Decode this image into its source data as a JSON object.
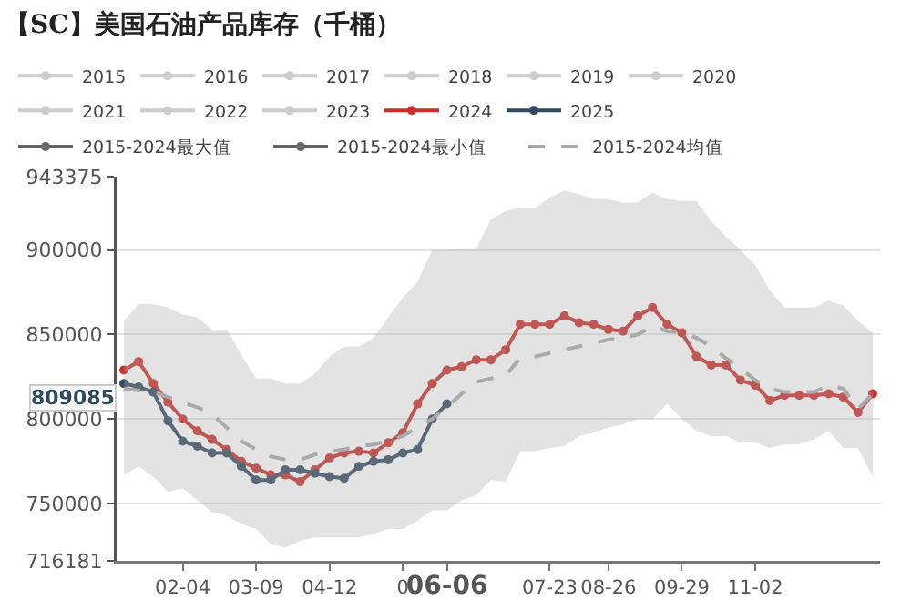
{
  "chart_data": {
    "type": "line",
    "title": "【SC】美国石油产品库存（千桶）",
    "categories": [
      null,
      null,
      null,
      null,
      "02-04",
      null,
      null,
      null,
      null,
      "03-09",
      null,
      null,
      null,
      null,
      "04-12",
      null,
      null,
      null,
      null,
      "0",
      null,
      null,
      "06-06",
      null,
      null,
      null,
      null,
      null,
      null,
      "07-23",
      null,
      null,
      null,
      "08-26",
      null,
      null,
      null,
      null,
      "09-29",
      null,
      null,
      null,
      null,
      "11-02",
      null,
      null,
      null,
      null,
      null,
      null,
      null,
      null
    ],
    "series": [
      {
        "name": "2015",
        "color": "#cccccc",
        "values": [
          null,
          null,
          null,
          null,
          null,
          null,
          null,
          null,
          null,
          null,
          null,
          null,
          null,
          null,
          null,
          null,
          null,
          null,
          null,
          null,
          null,
          null,
          null,
          null,
          null,
          null,
          null,
          null,
          null,
          null,
          null,
          null,
          null,
          null,
          null,
          null,
          null,
          null,
          null,
          null,
          null,
          null,
          null,
          null,
          null,
          null,
          null,
          null,
          null,
          null,
          null,
          null
        ]
      },
      {
        "name": "2016",
        "color": "#cccccc",
        "values": [
          null,
          null,
          null,
          null,
          null,
          null,
          null,
          null,
          null,
          null,
          null,
          null,
          null,
          null,
          null,
          null,
          null,
          null,
          null,
          null,
          null,
          null,
          null,
          null,
          null,
          null,
          null,
          null,
          null,
          null,
          null,
          null,
          null,
          null,
          null,
          null,
          null,
          null,
          null,
          null,
          null,
          null,
          null,
          null,
          null,
          null,
          null,
          null,
          null,
          null,
          null,
          null
        ]
      },
      {
        "name": "2017",
        "color": "#cccccc",
        "values": [
          null,
          null,
          null,
          null,
          null,
          null,
          null,
          null,
          null,
          null,
          null,
          null,
          null,
          null,
          null,
          null,
          null,
          null,
          null,
          null,
          null,
          null,
          null,
          null,
          null,
          null,
          null,
          null,
          null,
          null,
          null,
          null,
          null,
          null,
          null,
          null,
          null,
          null,
          null,
          null,
          null,
          null,
          null,
          null,
          null,
          null,
          null,
          null,
          null,
          null,
          null,
          null
        ]
      },
      {
        "name": "2018",
        "color": "#cccccc",
        "values": [
          null,
          null,
          null,
          null,
          null,
          null,
          null,
          null,
          null,
          null,
          null,
          null,
          null,
          null,
          null,
          null,
          null,
          null,
          null,
          null,
          null,
          null,
          null,
          null,
          null,
          null,
          null,
          null,
          null,
          null,
          null,
          null,
          null,
          null,
          null,
          null,
          null,
          null,
          null,
          null,
          null,
          null,
          null,
          null,
          null,
          null,
          null,
          null,
          null,
          null,
          null,
          null
        ]
      },
      {
        "name": "2019",
        "color": "#cccccc",
        "values": [
          null,
          null,
          null,
          null,
          null,
          null,
          null,
          null,
          null,
          null,
          null,
          null,
          null,
          null,
          null,
          null,
          null,
          null,
          null,
          null,
          null,
          null,
          null,
          null,
          null,
          null,
          null,
          null,
          null,
          null,
          null,
          null,
          null,
          null,
          null,
          null,
          null,
          null,
          null,
          null,
          null,
          null,
          null,
          null,
          null,
          null,
          null,
          null,
          null,
          null,
          null,
          null
        ]
      },
      {
        "name": "2020",
        "color": "#cccccc",
        "values": [
          null,
          null,
          null,
          null,
          null,
          null,
          null,
          null,
          null,
          null,
          null,
          null,
          null,
          null,
          null,
          null,
          null,
          null,
          null,
          null,
          null,
          null,
          null,
          null,
          null,
          null,
          null,
          null,
          null,
          null,
          null,
          null,
          null,
          null,
          null,
          null,
          null,
          null,
          null,
          null,
          null,
          null,
          null,
          null,
          null,
          null,
          null,
          null,
          null,
          null,
          null,
          null
        ]
      },
      {
        "name": "2021",
        "color": "#cccccc",
        "values": [
          null,
          null,
          null,
          null,
          null,
          null,
          null,
          null,
          null,
          null,
          null,
          null,
          null,
          null,
          null,
          null,
          null,
          null,
          null,
          null,
          null,
          null,
          null,
          null,
          null,
          null,
          null,
          null,
          null,
          null,
          null,
          null,
          null,
          null,
          null,
          null,
          null,
          null,
          null,
          null,
          null,
          null,
          null,
          null,
          null,
          null,
          null,
          null,
          null,
          null,
          null,
          null
        ]
      },
      {
        "name": "2022",
        "color": "#cccccc",
        "values": [
          null,
          null,
          null,
          null,
          null,
          null,
          null,
          null,
          null,
          null,
          null,
          null,
          null,
          null,
          null,
          null,
          null,
          null,
          null,
          null,
          null,
          null,
          null,
          null,
          null,
          null,
          null,
          null,
          null,
          null,
          null,
          null,
          null,
          null,
          null,
          null,
          null,
          null,
          null,
          null,
          null,
          null,
          null,
          null,
          null,
          null,
          null,
          null,
          null,
          null,
          null,
          null
        ]
      },
      {
        "name": "2023",
        "color": "#cccccc",
        "values": [
          null,
          null,
          null,
          null,
          null,
          null,
          null,
          null,
          null,
          null,
          null,
          null,
          null,
          null,
          null,
          null,
          null,
          null,
          null,
          null,
          null,
          null,
          null,
          null,
          null,
          null,
          null,
          null,
          null,
          null,
          null,
          null,
          null,
          null,
          null,
          null,
          null,
          null,
          null,
          null,
          null,
          null,
          null,
          null,
          null,
          null,
          null,
          null,
          null,
          null,
          null,
          null
        ]
      },
      {
        "name": "2024",
        "color": "#c9302c",
        "values": [
          829000,
          834000,
          821000,
          810000,
          800000,
          793000,
          788000,
          782000,
          775000,
          771000,
          767000,
          767000,
          763000,
          770000,
          777000,
          780000,
          781000,
          780000,
          786000,
          792000,
          809000,
          821000,
          829000,
          831000,
          835000,
          835000,
          841000,
          856000,
          856000,
          856000,
          861000,
          857000,
          856000,
          853000,
          852000,
          861000,
          866000,
          856000,
          851000,
          837000,
          832000,
          832000,
          823000,
          820000,
          811000,
          814000,
          814000,
          814000,
          815000,
          813000,
          804000,
          815000
        ]
      },
      {
        "name": "2025",
        "color": "#34495e",
        "values": [
          821000,
          819000,
          816000,
          799000,
          787000,
          784000,
          780000,
          780000,
          772000,
          764000,
          764000,
          770000,
          770000,
          768000,
          766000,
          765000,
          772000,
          775000,
          776000,
          780000,
          782000,
          800000,
          809085,
          null,
          null,
          null,
          null,
          null,
          null,
          null,
          null,
          null,
          null,
          null,
          null,
          null,
          null,
          null,
          null,
          null,
          null,
          null,
          null,
          null,
          null,
          null,
          null,
          null,
          null,
          null,
          null,
          null
        ]
      },
      {
        "name": "2015-2024最大值",
        "color": "#666666",
        "values": [
          null,
          null,
          null,
          null,
          null,
          null,
          null,
          null,
          null,
          null,
          null,
          null,
          null,
          null,
          null,
          null,
          null,
          null,
          null,
          null,
          null,
          null,
          null,
          null,
          null,
          null,
          null,
          null,
          null,
          null,
          null,
          null,
          null,
          null,
          null,
          null,
          null,
          null,
          null,
          null,
          null,
          null,
          null,
          null,
          null,
          null,
          null,
          null,
          null,
          null,
          null,
          null
        ]
      },
      {
        "name": "2015-2024最小值",
        "color": "#666666",
        "values": [
          null,
          null,
          null,
          null,
          null,
          null,
          null,
          null,
          null,
          null,
          null,
          null,
          null,
          null,
          null,
          null,
          null,
          null,
          null,
          null,
          null,
          null,
          null,
          null,
          null,
          null,
          null,
          null,
          null,
          null,
          null,
          null,
          null,
          null,
          null,
          null,
          null,
          null,
          null,
          null,
          null,
          null,
          null,
          null,
          null,
          null,
          null,
          null,
          null,
          null,
          null,
          null
        ]
      },
      {
        "name": "2015-2024均值",
        "color": "#aaaaaa",
        "line_style": "dashed",
        "marker": "none",
        "values": [
          818000,
          817000,
          816000,
          813000,
          810000,
          807000,
          803000,
          795000,
          787000,
          782000,
          778000,
          776000,
          776000,
          779000,
          781000,
          782000,
          784000,
          785000,
          787000,
          790000,
          795000,
          800000,
          807000,
          815000,
          822000,
          824000,
          826000,
          836000,
          837000,
          839000,
          841000,
          843000,
          845000,
          847000,
          848000,
          850000,
          855000,
          852000,
          851000,
          848000,
          843000,
          836000,
          830000,
          823000,
          818000,
          816000,
          816000,
          816000,
          820000,
          818000,
          806000,
          815000
        ],
        "lower": [
          767000,
          772000,
          766000,
          757000,
          759000,
          752000,
          745000,
          743000,
          738000,
          735000,
          726000,
          724000,
          728000,
          730000,
          730000,
          730000,
          730000,
          732000,
          735000,
          735000,
          740000,
          746000,
          746000,
          752000,
          755000,
          764000,
          763000,
          781000,
          781000,
          783000,
          784000,
          790000,
          792000,
          795000,
          797000,
          800000,
          800000,
          809000,
          800000,
          793000,
          790000,
          790000,
          786000,
          786000,
          783000,
          785000,
          785000,
          788000,
          793000,
          783000,
          783000,
          766000
        ],
        "upper": [
          858000,
          868000,
          868000,
          866000,
          862000,
          860000,
          853000,
          853000,
          838000,
          824000,
          824000,
          821000,
          821000,
          827000,
          837000,
          843000,
          843000,
          848000,
          860000,
          872000,
          881000,
          900000,
          900000,
          901000,
          901000,
          918000,
          923000,
          925000,
          925000,
          931000,
          935000,
          933000,
          930000,
          930000,
          928000,
          928000,
          934000,
          930000,
          929000,
          929000,
          917000,
          908000,
          900000,
          891000,
          876000,
          866000,
          866000,
          866000,
          870000,
          867000,
          858000,
          851000
        ]
      }
    ],
    "ylim": [
      716181,
      943375
    ],
    "yticks": [
      716181,
      750000,
      800000,
      850000,
      900000,
      943375
    ],
    "annotations": [
      "809085"
    ],
    "grid": "y",
    "legend": "top",
    "marker": "circle",
    "line_style": "solid"
  }
}
